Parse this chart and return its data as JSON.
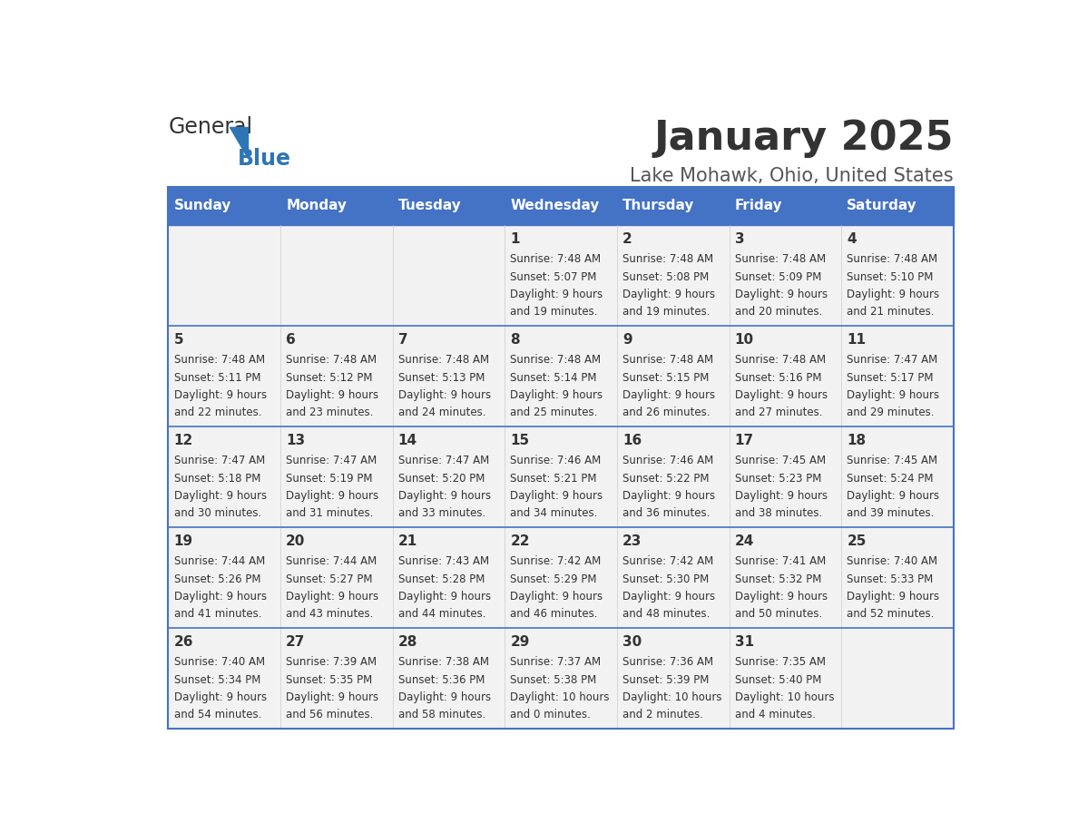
{
  "title": "January 2025",
  "subtitle": "Lake Mohawk, Ohio, United States",
  "days_of_week": [
    "Sunday",
    "Monday",
    "Tuesday",
    "Wednesday",
    "Thursday",
    "Friday",
    "Saturday"
  ],
  "header_bg": "#4472C4",
  "header_text_color": "#FFFFFF",
  "cell_bg_light": "#F2F2F2",
  "cell_bg_white": "#FFFFFF",
  "border_color": "#4472C4",
  "row_line_color": "#4472C4",
  "text_color": "#333333",
  "title_color": "#333333",
  "subtitle_color": "#555555",
  "logo_general_color": "#333333",
  "logo_blue_color": "#2E75B6",
  "weeks": [
    [
      {
        "day": "",
        "sunrise": "",
        "sunset": "",
        "daylight": ""
      },
      {
        "day": "",
        "sunrise": "",
        "sunset": "",
        "daylight": ""
      },
      {
        "day": "",
        "sunrise": "",
        "sunset": "",
        "daylight": ""
      },
      {
        "day": "1",
        "sunrise": "7:48 AM",
        "sunset": "5:07 PM",
        "daylight": "9 hours and 19 minutes."
      },
      {
        "day": "2",
        "sunrise": "7:48 AM",
        "sunset": "5:08 PM",
        "daylight": "9 hours and 19 minutes."
      },
      {
        "day": "3",
        "sunrise": "7:48 AM",
        "sunset": "5:09 PM",
        "daylight": "9 hours and 20 minutes."
      },
      {
        "day": "4",
        "sunrise": "7:48 AM",
        "sunset": "5:10 PM",
        "daylight": "9 hours and 21 minutes."
      }
    ],
    [
      {
        "day": "5",
        "sunrise": "7:48 AM",
        "sunset": "5:11 PM",
        "daylight": "9 hours and 22 minutes."
      },
      {
        "day": "6",
        "sunrise": "7:48 AM",
        "sunset": "5:12 PM",
        "daylight": "9 hours and 23 minutes."
      },
      {
        "day": "7",
        "sunrise": "7:48 AM",
        "sunset": "5:13 PM",
        "daylight": "9 hours and 24 minutes."
      },
      {
        "day": "8",
        "sunrise": "7:48 AM",
        "sunset": "5:14 PM",
        "daylight": "9 hours and 25 minutes."
      },
      {
        "day": "9",
        "sunrise": "7:48 AM",
        "sunset": "5:15 PM",
        "daylight": "9 hours and 26 minutes."
      },
      {
        "day": "10",
        "sunrise": "7:48 AM",
        "sunset": "5:16 PM",
        "daylight": "9 hours and 27 minutes."
      },
      {
        "day": "11",
        "sunrise": "7:47 AM",
        "sunset": "5:17 PM",
        "daylight": "9 hours and 29 minutes."
      }
    ],
    [
      {
        "day": "12",
        "sunrise": "7:47 AM",
        "sunset": "5:18 PM",
        "daylight": "9 hours and 30 minutes."
      },
      {
        "day": "13",
        "sunrise": "7:47 AM",
        "sunset": "5:19 PM",
        "daylight": "9 hours and 31 minutes."
      },
      {
        "day": "14",
        "sunrise": "7:47 AM",
        "sunset": "5:20 PM",
        "daylight": "9 hours and 33 minutes."
      },
      {
        "day": "15",
        "sunrise": "7:46 AM",
        "sunset": "5:21 PM",
        "daylight": "9 hours and 34 minutes."
      },
      {
        "day": "16",
        "sunrise": "7:46 AM",
        "sunset": "5:22 PM",
        "daylight": "9 hours and 36 minutes."
      },
      {
        "day": "17",
        "sunrise": "7:45 AM",
        "sunset": "5:23 PM",
        "daylight": "9 hours and 38 minutes."
      },
      {
        "day": "18",
        "sunrise": "7:45 AM",
        "sunset": "5:24 PM",
        "daylight": "9 hours and 39 minutes."
      }
    ],
    [
      {
        "day": "19",
        "sunrise": "7:44 AM",
        "sunset": "5:26 PM",
        "daylight": "9 hours and 41 minutes."
      },
      {
        "day": "20",
        "sunrise": "7:44 AM",
        "sunset": "5:27 PM",
        "daylight": "9 hours and 43 minutes."
      },
      {
        "day": "21",
        "sunrise": "7:43 AM",
        "sunset": "5:28 PM",
        "daylight": "9 hours and 44 minutes."
      },
      {
        "day": "22",
        "sunrise": "7:42 AM",
        "sunset": "5:29 PM",
        "daylight": "9 hours and 46 minutes."
      },
      {
        "day": "23",
        "sunrise": "7:42 AM",
        "sunset": "5:30 PM",
        "daylight": "9 hours and 48 minutes."
      },
      {
        "day": "24",
        "sunrise": "7:41 AM",
        "sunset": "5:32 PM",
        "daylight": "9 hours and 50 minutes."
      },
      {
        "day": "25",
        "sunrise": "7:40 AM",
        "sunset": "5:33 PM",
        "daylight": "9 hours and 52 minutes."
      }
    ],
    [
      {
        "day": "26",
        "sunrise": "7:40 AM",
        "sunset": "5:34 PM",
        "daylight": "9 hours and 54 minutes."
      },
      {
        "day": "27",
        "sunrise": "7:39 AM",
        "sunset": "5:35 PM",
        "daylight": "9 hours and 56 minutes."
      },
      {
        "day": "28",
        "sunrise": "7:38 AM",
        "sunset": "5:36 PM",
        "daylight": "9 hours and 58 minutes."
      },
      {
        "day": "29",
        "sunrise": "7:37 AM",
        "sunset": "5:38 PM",
        "daylight": "10 hours and 0 minutes."
      },
      {
        "day": "30",
        "sunrise": "7:36 AM",
        "sunset": "5:39 PM",
        "daylight": "10 hours and 2 minutes."
      },
      {
        "day": "31",
        "sunrise": "7:35 AM",
        "sunset": "5:40 PM",
        "daylight": "10 hours and 4 minutes."
      },
      {
        "day": "",
        "sunrise": "",
        "sunset": "",
        "daylight": ""
      }
    ]
  ]
}
